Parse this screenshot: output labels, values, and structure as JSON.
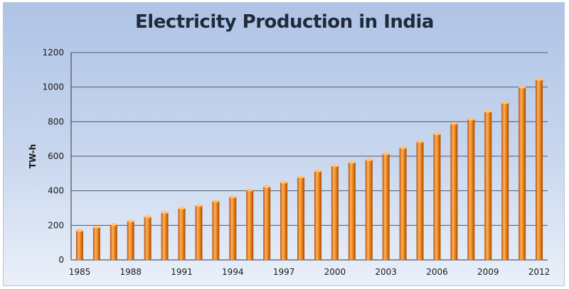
{
  "chart_data": {
    "type": "bar",
    "title": "Electricity Production in India",
    "xlabel": "",
    "ylabel": "TW-h",
    "ylim": [
      0,
      1200
    ],
    "yticks": [
      0,
      200,
      400,
      600,
      800,
      1000,
      1200
    ],
    "grid": true,
    "legend": "none",
    "categories": [
      "1985",
      "1986",
      "1987",
      "1988",
      "1989",
      "1990",
      "1991",
      "1992",
      "1993",
      "1994",
      "1995",
      "1996",
      "1997",
      "1998",
      "1999",
      "2000",
      "2001",
      "2002",
      "2003",
      "2004",
      "2005",
      "2006",
      "2007",
      "2008",
      "2009",
      "2010",
      "2011",
      "2012"
    ],
    "category_labels_shown": [
      "1985",
      "1988",
      "1991",
      "1994",
      "1997",
      "2000",
      "2003",
      "2006",
      "2009",
      "2012"
    ],
    "values": [
      170,
      190,
      205,
      225,
      250,
      275,
      300,
      315,
      340,
      365,
      405,
      425,
      450,
      480,
      515,
      545,
      565,
      580,
      615,
      650,
      685,
      730,
      790,
      815,
      860,
      910,
      1000,
      1045
    ],
    "bar_color": "#f08a1c"
  }
}
